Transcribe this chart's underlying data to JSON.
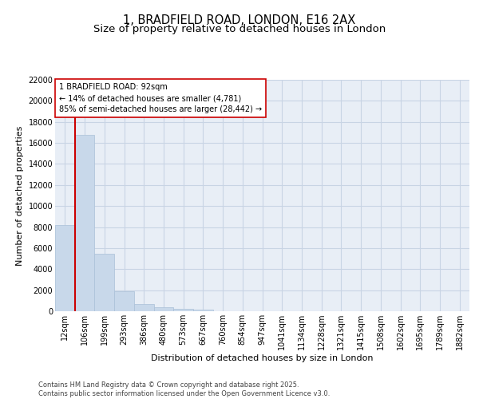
{
  "title_line1": "1, BRADFIELD ROAD, LONDON, E16 2AX",
  "title_line2": "Size of property relative to detached houses in London",
  "xlabel": "Distribution of detached houses by size in London",
  "ylabel": "Number of detached properties",
  "categories": [
    "12sqm",
    "106sqm",
    "199sqm",
    "293sqm",
    "386sqm",
    "480sqm",
    "573sqm",
    "667sqm",
    "760sqm",
    "854sqm",
    "947sqm",
    "1041sqm",
    "1134sqm",
    "1228sqm",
    "1321sqm",
    "1415sqm",
    "1508sqm",
    "1602sqm",
    "1695sqm",
    "1789sqm",
    "1882sqm"
  ],
  "values": [
    8200,
    16800,
    5500,
    1900,
    700,
    380,
    250,
    160,
    0,
    0,
    0,
    0,
    0,
    0,
    0,
    0,
    0,
    0,
    0,
    0,
    0
  ],
  "bar_color": "#c8d8ea",
  "bar_edgecolor": "#aac0d8",
  "vline_color": "#cc0000",
  "vline_x_index": 0.5,
  "annotation_text": "1 BRADFIELD ROAD: 92sqm\n← 14% of detached houses are smaller (4,781)\n85% of semi-detached houses are larger (28,442) →",
  "annotation_box_edgecolor": "#cc0000",
  "annotation_box_facecolor": "#ffffff",
  "ylim": [
    0,
    22000
  ],
  "yticks": [
    0,
    2000,
    4000,
    6000,
    8000,
    10000,
    12000,
    14000,
    16000,
    18000,
    20000,
    22000
  ],
  "grid_color": "#c8d4e4",
  "background_color": "#e8eef6",
  "footer_text": "Contains HM Land Registry data © Crown copyright and database right 2025.\nContains public sector information licensed under the Open Government Licence v3.0.",
  "title_fontsize": 10.5,
  "subtitle_fontsize": 9.5,
  "axis_label_fontsize": 8,
  "tick_fontsize": 7,
  "annotation_fontsize": 7,
  "footer_fontsize": 6
}
